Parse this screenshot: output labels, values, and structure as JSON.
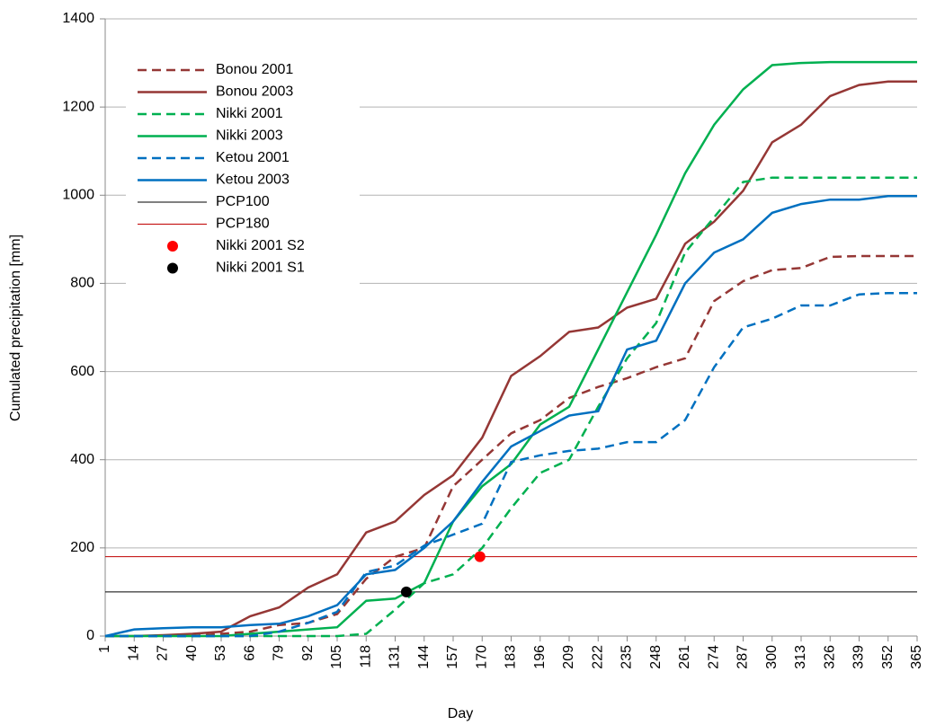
{
  "chart_data": {
    "type": "line",
    "x_label": "Day",
    "y_label": "Cumulated precipitation [mm]",
    "x": [
      1,
      14,
      27,
      40,
      53,
      66,
      79,
      92,
      105,
      118,
      131,
      144,
      157,
      170,
      183,
      196,
      209,
      222,
      235,
      248,
      261,
      274,
      287,
      300,
      313,
      326,
      339,
      352,
      365
    ],
    "xlim": [
      1,
      365
    ],
    "xticks": [
      1,
      14,
      27,
      40,
      53,
      66,
      79,
      92,
      105,
      118,
      131,
      144,
      157,
      170,
      183,
      196,
      209,
      222,
      235,
      248,
      261,
      274,
      287,
      300,
      313,
      326,
      339,
      352,
      365
    ],
    "ylim": [
      0,
      1400
    ],
    "yticks": [
      0,
      200,
      400,
      600,
      800,
      1000,
      1200,
      1400
    ],
    "grid": true,
    "series": [
      {
        "name": "Bonou 2001",
        "color": "#953735",
        "style": "dashed",
        "values": [
          0,
          0,
          0,
          0,
          5,
          10,
          25,
          30,
          50,
          130,
          180,
          200,
          340,
          400,
          460,
          490,
          540,
          565,
          585,
          610,
          630,
          760,
          805,
          830,
          835,
          860,
          862,
          862,
          862
        ]
      },
      {
        "name": "Bonou 2003",
        "color": "#953735",
        "style": "solid",
        "values": [
          0,
          0,
          2,
          5,
          10,
          45,
          65,
          110,
          140,
          235,
          260,
          320,
          365,
          450,
          590,
          635,
          690,
          700,
          745,
          765,
          890,
          940,
          1010,
          1120,
          1160,
          1225,
          1250,
          1258,
          1258
        ]
      },
      {
        "name": "Nikki 2001",
        "color": "#00b050",
        "style": "dashed",
        "values": [
          0,
          0,
          0,
          0,
          0,
          0,
          0,
          0,
          0,
          5,
          60,
          120,
          140,
          200,
          290,
          370,
          400,
          520,
          630,
          710,
          870,
          950,
          1030,
          1040,
          1040,
          1040,
          1040,
          1040,
          1040
        ]
      },
      {
        "name": "Nikki 2003",
        "color": "#00b050",
        "style": "solid",
        "values": [
          0,
          0,
          0,
          0,
          0,
          5,
          10,
          15,
          20,
          80,
          85,
          120,
          260,
          340,
          390,
          480,
          520,
          650,
          780,
          910,
          1050,
          1160,
          1240,
          1295,
          1300,
          1302,
          1302,
          1302,
          1302
        ]
      },
      {
        "name": "Ketou 2001",
        "color": "#0070c0",
        "style": "dashed",
        "values": [
          0,
          0,
          0,
          0,
          0,
          0,
          10,
          30,
          55,
          145,
          160,
          205,
          230,
          255,
          395,
          410,
          420,
          425,
          440,
          440,
          490,
          610,
          700,
          720,
          750,
          750,
          775,
          778,
          778
        ]
      },
      {
        "name": "Ketou 2003",
        "color": "#0070c0",
        "style": "solid",
        "values": [
          0,
          15,
          18,
          20,
          20,
          25,
          28,
          45,
          70,
          140,
          150,
          200,
          260,
          350,
          430,
          465,
          500,
          510,
          650,
          670,
          800,
          870,
          900,
          960,
          980,
          990,
          990,
          998,
          998
        ]
      }
    ],
    "hlines": [
      {
        "name": "PCP100",
        "color": "#000000",
        "value": 100
      },
      {
        "name": "PCP180",
        "color": "#c00000",
        "value": 180
      }
    ],
    "points": [
      {
        "name": "Nikki 2001 S2",
        "color": "#ff0000",
        "x": 169,
        "y": 180
      },
      {
        "name": "Nikki 2001 S1",
        "color": "#000000",
        "x": 136,
        "y": 100
      }
    ]
  }
}
